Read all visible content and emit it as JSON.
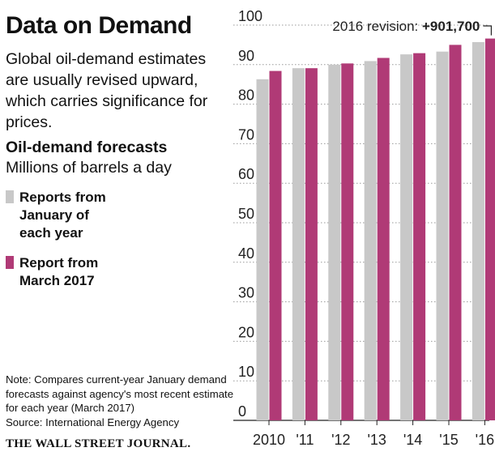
{
  "header": {
    "title": "Data on Demand",
    "subtitle": "Global oil-demand estimates are usually revised upward, which carries significance for prices."
  },
  "chart_header": {
    "title": "Oil-demand forecasts",
    "units": "Millions of barrels a day"
  },
  "legend": [
    {
      "label": "Reports from January of each year",
      "color": "#c8c8c8"
    },
    {
      "label": "Report from March 2017",
      "color": "#b03a76"
    }
  ],
  "footer": {
    "note": "Note: Compares current-year January demand forecasts against agency's most recent estimate for each year (March 2017)",
    "source": "Source: International Energy Agency",
    "credit": "THE WALL STREET JOURNAL."
  },
  "chart_data": {
    "type": "bar",
    "categories": [
      "2010",
      "'11",
      "'12",
      "'13",
      "'14",
      "'15",
      "'16"
    ],
    "series": [
      {
        "name": "Reports from January of each year",
        "color": "#c8c8c8",
        "values": [
          86.3,
          89.1,
          90.0,
          90.9,
          92.6,
          93.3,
          95.7
        ]
      },
      {
        "name": "Report from March 2017",
        "color": "#b03a76",
        "values": [
          88.4,
          89.1,
          90.3,
          91.7,
          92.9,
          95.0,
          96.6
        ]
      }
    ],
    "ylim": [
      0,
      100
    ],
    "yticks": [
      0,
      10,
      20,
      30,
      40,
      50,
      60,
      70,
      80,
      90,
      100
    ],
    "grid": true,
    "annotation": {
      "prefix": "2016 revision: ",
      "value": "+901,700"
    }
  }
}
